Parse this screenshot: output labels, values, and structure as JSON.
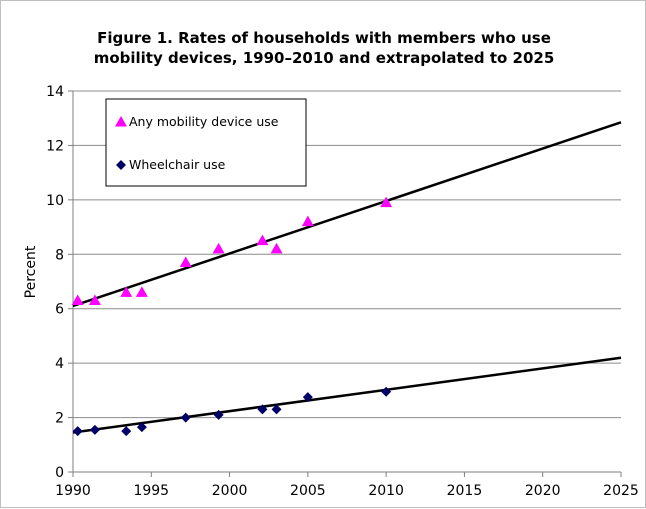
{
  "chart_data": {
    "type": "scatter",
    "title_lines": [
      "Figure 1. Rates of households with members who use",
      "mobility devices, 1990–2010 and extrapolated to 2025"
    ],
    "xlabel": "",
    "ylabel": "Percent",
    "xlim": [
      1990,
      2025
    ],
    "ylim": [
      0,
      14
    ],
    "x_ticks": [
      1990,
      1995,
      2000,
      2005,
      2010,
      2015,
      2020,
      2025
    ],
    "y_ticks": [
      0,
      2,
      4,
      6,
      8,
      10,
      12,
      14
    ],
    "grid": "horizontal",
    "legend_position": "top-left",
    "series": [
      {
        "name": "Any mobility device use",
        "marker": "triangle",
        "color": "#ff00ff",
        "x": [
          1990.3,
          1991.4,
          1993.4,
          1994.4,
          1997.2,
          1999.3,
          2002.1,
          2003.0,
          2005.0,
          2010.0
        ],
        "y": [
          6.3,
          6.3,
          6.6,
          6.6,
          7.7,
          8.2,
          8.5,
          8.2,
          9.2,
          9.9
        ],
        "trend": {
          "x": [
            1990,
            2025
          ],
          "y": [
            6.1,
            12.85
          ]
        }
      },
      {
        "name": "Wheelchair use",
        "marker": "diamond",
        "color": "#000066",
        "x": [
          1990.3,
          1991.4,
          1993.4,
          1994.4,
          1997.2,
          1999.3,
          2002.1,
          2003.0,
          2005.0,
          2010.0
        ],
        "y": [
          1.5,
          1.55,
          1.5,
          1.65,
          2.0,
          2.1,
          2.3,
          2.3,
          2.75,
          2.95
        ],
        "trend": {
          "x": [
            1990,
            2025
          ],
          "y": [
            1.45,
            4.2
          ]
        }
      }
    ]
  }
}
